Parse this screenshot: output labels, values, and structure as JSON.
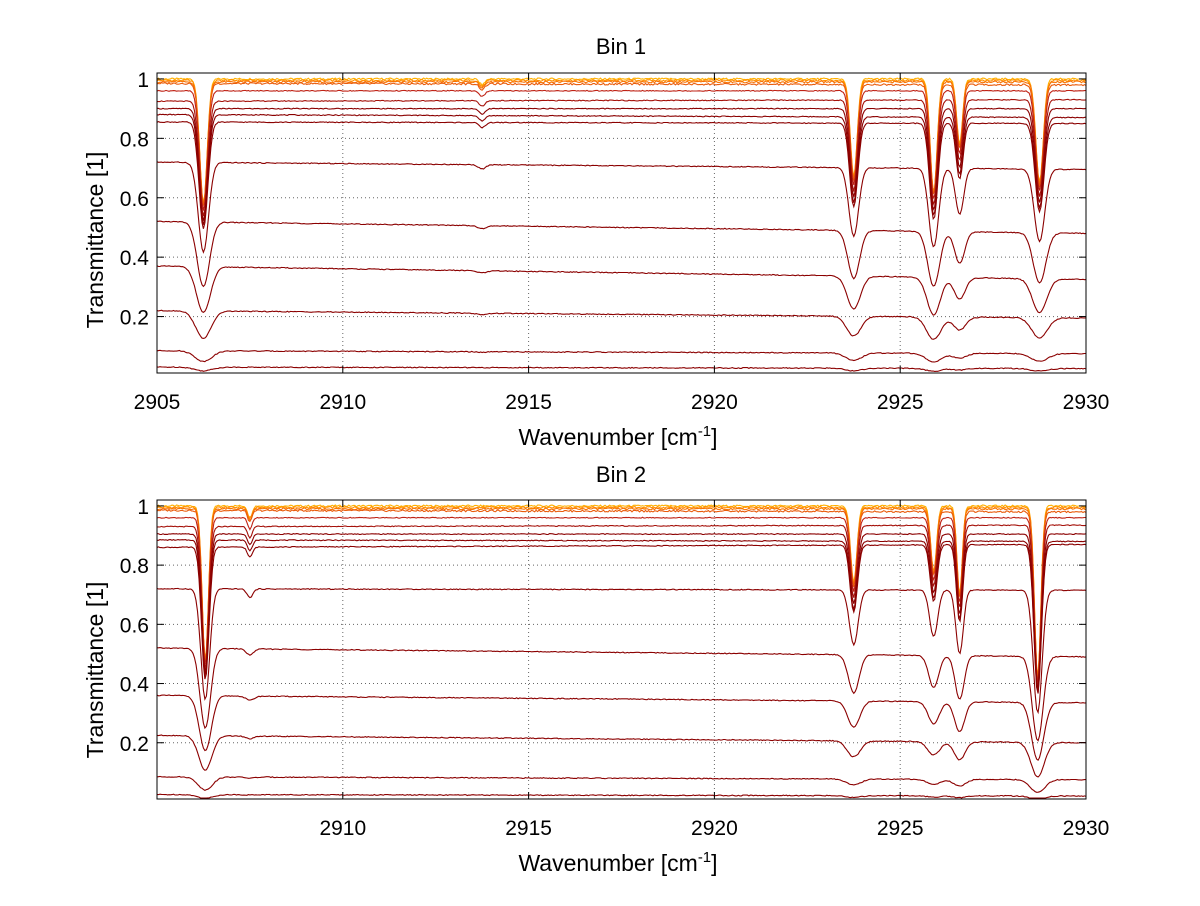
{
  "figure": {
    "background": "#ffffff",
    "axis_color": "#000000",
    "grid_color": "#666666",
    "line_color_dark": "#8b0000",
    "line_color_mid": "#cc2a1a",
    "line_color_light": "#ff7f00",
    "line_color_top": "#ffb000"
  },
  "chart_data": [
    {
      "type": "line",
      "title": "Bin 1",
      "xlabel": "Wavenumber [cm",
      "xlabel_sup": "-1",
      "xlabel_end": "]",
      "ylabel": "Transmittance [1]",
      "xlim": [
        2905,
        2930
      ],
      "ylim": [
        0.01,
        1.02
      ],
      "grid": true,
      "x_ticks": [
        2905,
        2910,
        2915,
        2920,
        2925,
        2930
      ],
      "x_tick_labels": [
        "2905",
        "2910",
        "2915",
        "2920",
        "2925",
        "2930"
      ],
      "y_ticks": [
        0.2,
        0.4,
        0.6,
        0.8,
        1.0
      ],
      "y_tick_labels": [
        "0.2",
        "0.4",
        "0.6",
        "0.8",
        "1"
      ],
      "absorption_lines": [
        {
          "x": 2906.25,
          "width": 0.14,
          "rel_depth": 0.42
        },
        {
          "x": 2913.75,
          "width": 0.1,
          "rel_depth": 0.02
        },
        {
          "x": 2923.75,
          "width": 0.13,
          "rel_depth": 0.33
        },
        {
          "x": 2925.9,
          "width": 0.13,
          "rel_depth": 0.38
        },
        {
          "x": 2926.6,
          "width": 0.11,
          "rel_depth": 0.22
        },
        {
          "x": 2928.75,
          "width": 0.14,
          "rel_depth": 0.35
        }
      ],
      "series": [
        {
          "baseline_start": 1.0,
          "baseline_end": 1.0,
          "shade": 0.0
        },
        {
          "baseline_start": 0.995,
          "baseline_end": 0.995,
          "shade": 0.1
        },
        {
          "baseline_start": 0.99,
          "baseline_end": 0.99,
          "shade": 0.2
        },
        {
          "baseline_start": 0.985,
          "baseline_end": 0.98,
          "shade": 0.3
        },
        {
          "baseline_start": 0.96,
          "baseline_end": 0.96,
          "shade": 0.6
        },
        {
          "baseline_start": 0.925,
          "baseline_end": 0.93,
          "shade": 0.8
        },
        {
          "baseline_start": 0.9,
          "baseline_end": 0.9,
          "shade": 1.0
        },
        {
          "baseline_start": 0.88,
          "baseline_end": 0.87,
          "shade": 1.0
        },
        {
          "baseline_start": 0.855,
          "baseline_end": 0.85,
          "shade": 1.0
        },
        {
          "baseline_start": 0.72,
          "baseline_end": 0.695,
          "shade": 1.0
        },
        {
          "baseline_start": 0.52,
          "baseline_end": 0.48,
          "shade": 1.0
        },
        {
          "baseline_start": 0.37,
          "baseline_end": 0.325,
          "shade": 1.0
        },
        {
          "baseline_start": 0.22,
          "baseline_end": 0.195,
          "shade": 1.0
        },
        {
          "baseline_start": 0.085,
          "baseline_end": 0.075,
          "shade": 1.0
        },
        {
          "baseline_start": 0.03,
          "baseline_end": 0.025,
          "shade": 1.0
        }
      ]
    },
    {
      "type": "line",
      "title": "Bin 2",
      "xlabel": "Wavenumber [cm",
      "xlabel_sup": "-1",
      "xlabel_end": "]",
      "ylabel": "Transmittance [1]",
      "xlim": [
        2905,
        2930
      ],
      "ylim": [
        0.01,
        1.02
      ],
      "grid": true,
      "x_ticks": [
        2910,
        2915,
        2920,
        2925,
        2930
      ],
      "x_tick_labels": [
        "2910",
        "2915",
        "2920",
        "2925",
        "2930"
      ],
      "y_ticks": [
        0.2,
        0.4,
        0.6,
        0.8,
        1.0
      ],
      "y_tick_labels": [
        "0.2",
        "0.4",
        "0.6",
        "0.8",
        "1"
      ],
      "absorption_lines": [
        {
          "x": 2906.3,
          "width": 0.12,
          "rel_depth": 0.52
        },
        {
          "x": 2907.5,
          "width": 0.08,
          "rel_depth": 0.04
        },
        {
          "x": 2923.75,
          "width": 0.12,
          "rel_depth": 0.26
        },
        {
          "x": 2925.9,
          "width": 0.11,
          "rel_depth": 0.22
        },
        {
          "x": 2926.6,
          "width": 0.1,
          "rel_depth": 0.3
        },
        {
          "x": 2928.7,
          "width": 0.12,
          "rel_depth": 0.58
        }
      ],
      "series": [
        {
          "baseline_start": 1.0,
          "baseline_end": 1.0,
          "shade": 0.0
        },
        {
          "baseline_start": 0.995,
          "baseline_end": 0.995,
          "shade": 0.1
        },
        {
          "baseline_start": 0.99,
          "baseline_end": 0.99,
          "shade": 0.2
        },
        {
          "baseline_start": 0.985,
          "baseline_end": 0.98,
          "shade": 0.3
        },
        {
          "baseline_start": 0.96,
          "baseline_end": 0.96,
          "shade": 0.6
        },
        {
          "baseline_start": 0.93,
          "baseline_end": 0.935,
          "shade": 0.8
        },
        {
          "baseline_start": 0.905,
          "baseline_end": 0.905,
          "shade": 1.0
        },
        {
          "baseline_start": 0.885,
          "baseline_end": 0.88,
          "shade": 1.0
        },
        {
          "baseline_start": 0.86,
          "baseline_end": 0.87,
          "shade": 1.0
        },
        {
          "baseline_start": 0.72,
          "baseline_end": 0.715,
          "shade": 1.0
        },
        {
          "baseline_start": 0.52,
          "baseline_end": 0.49,
          "shade": 1.0
        },
        {
          "baseline_start": 0.36,
          "baseline_end": 0.335,
          "shade": 1.0
        },
        {
          "baseline_start": 0.225,
          "baseline_end": 0.2,
          "shade": 1.0
        },
        {
          "baseline_start": 0.085,
          "baseline_end": 0.075,
          "shade": 1.0
        },
        {
          "baseline_start": 0.025,
          "baseline_end": 0.02,
          "shade": 1.0
        }
      ]
    }
  ]
}
